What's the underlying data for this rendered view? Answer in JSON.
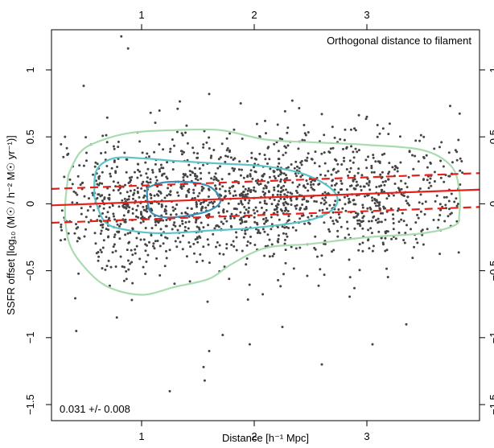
{
  "chart_data": {
    "type": "scatter",
    "title": "",
    "annotation_topright": "Orthogonal distance to filament",
    "annotation_bottomleft": "0.031 +/- 0.008",
    "xlabel": "Distance [h⁻¹ Mpc]",
    "ylabel": "SSFR offset [log₁₀ (M☉ / h⁻² M☉ yr⁻¹)]",
    "xlim": [
      0.2,
      4.0
    ],
    "ylim": [
      -1.62,
      1.3
    ],
    "xticks": [
      1,
      2,
      3
    ],
    "xtick_labels": [
      "1",
      "2",
      "3"
    ],
    "yticks": [
      -1.5,
      -1,
      -0.5,
      0,
      0.5,
      1
    ],
    "ytick_labels": [
      "−1.5",
      "−1",
      "−0.5",
      "0",
      "0.5",
      "1"
    ],
    "grid": false,
    "fit_line": {
      "slope": 0.031,
      "intercept": -0.018,
      "color": "#e8201c"
    },
    "fit_envelope": [
      {
        "slope": 0.031,
        "intercept": 0.105,
        "color": "#e8201c",
        "style": "dashed"
      },
      {
        "slope": 0.031,
        "intercept": -0.148,
        "color": "#e8201c",
        "style": "dashed"
      }
    ],
    "contours": [
      {
        "level": "outer",
        "color": "#a8dcb0",
        "points": [
          [
            0.35,
            0.22
          ],
          [
            0.45,
            0.38
          ],
          [
            0.6,
            0.46
          ],
          [
            0.9,
            0.53
          ],
          [
            1.3,
            0.55
          ],
          [
            1.7,
            0.55
          ],
          [
            2.1,
            0.48
          ],
          [
            2.5,
            0.46
          ],
          [
            3.0,
            0.44
          ],
          [
            3.5,
            0.4
          ],
          [
            3.75,
            0.28
          ],
          [
            3.82,
            0.1
          ],
          [
            3.82,
            -0.08
          ],
          [
            3.78,
            -0.16
          ],
          [
            3.5,
            -0.22
          ],
          [
            3.0,
            -0.25
          ],
          [
            2.5,
            -0.3
          ],
          [
            2.1,
            -0.33
          ],
          [
            1.8,
            -0.45
          ],
          [
            1.6,
            -0.56
          ],
          [
            1.3,
            -0.62
          ],
          [
            1.0,
            -0.68
          ],
          [
            0.7,
            -0.62
          ],
          [
            0.5,
            -0.48
          ],
          [
            0.36,
            -0.3
          ],
          [
            0.32,
            -0.05
          ],
          [
            0.35,
            0.22
          ]
        ]
      },
      {
        "level": "middle",
        "color": "#5cc4c8",
        "points": [
          [
            0.58,
            0.05
          ],
          [
            0.6,
            0.25
          ],
          [
            0.75,
            0.34
          ],
          [
            1.0,
            0.34
          ],
          [
            1.3,
            0.32
          ],
          [
            1.7,
            0.3
          ],
          [
            2.1,
            0.28
          ],
          [
            2.45,
            0.22
          ],
          [
            2.7,
            0.1
          ],
          [
            2.72,
            -0.02
          ],
          [
            2.5,
            -0.12
          ],
          [
            2.0,
            -0.18
          ],
          [
            1.6,
            -0.2
          ],
          [
            1.2,
            -0.22
          ],
          [
            0.9,
            -0.2
          ],
          [
            0.68,
            -0.14
          ],
          [
            0.58,
            0.05
          ]
        ]
      },
      {
        "level": "inner",
        "color": "#3a90b8",
        "points": [
          [
            1.05,
            0.12
          ],
          [
            1.2,
            0.16
          ],
          [
            1.45,
            0.16
          ],
          [
            1.62,
            0.12
          ],
          [
            1.7,
            0.02
          ],
          [
            1.6,
            -0.05
          ],
          [
            1.4,
            -0.09
          ],
          [
            1.2,
            -0.1
          ],
          [
            1.08,
            -0.06
          ],
          [
            1.05,
            0.04
          ],
          [
            1.05,
            0.12
          ]
        ]
      }
    ],
    "points_note": "approx. 1600 galaxies",
    "scatter_seed": 17,
    "scatter_count": 1600,
    "outliers": [
      [
        0.82,
        1.25
      ],
      [
        0.88,
        1.16
      ],
      [
        1.6,
        0.82
      ],
      [
        1.55,
        -1.22
      ],
      [
        1.6,
        -1.1
      ],
      [
        1.56,
        -1.32
      ],
      [
        1.25,
        -1.4
      ],
      [
        2.6,
        -1.2
      ],
      [
        3.05,
        -1.05
      ],
      [
        1.08,
        0.68
      ],
      [
        1.32,
        0.71
      ],
      [
        1.88,
        0.75
      ],
      [
        2.6,
        0.67
      ],
      [
        3.0,
        0.65
      ],
      [
        1.72,
        -0.98
      ],
      [
        1.96,
        -1.05
      ],
      [
        0.42,
        -0.95
      ],
      [
        0.78,
        -0.85
      ],
      [
        2.25,
        -0.92
      ],
      [
        3.35,
        -0.9
      ]
    ]
  }
}
